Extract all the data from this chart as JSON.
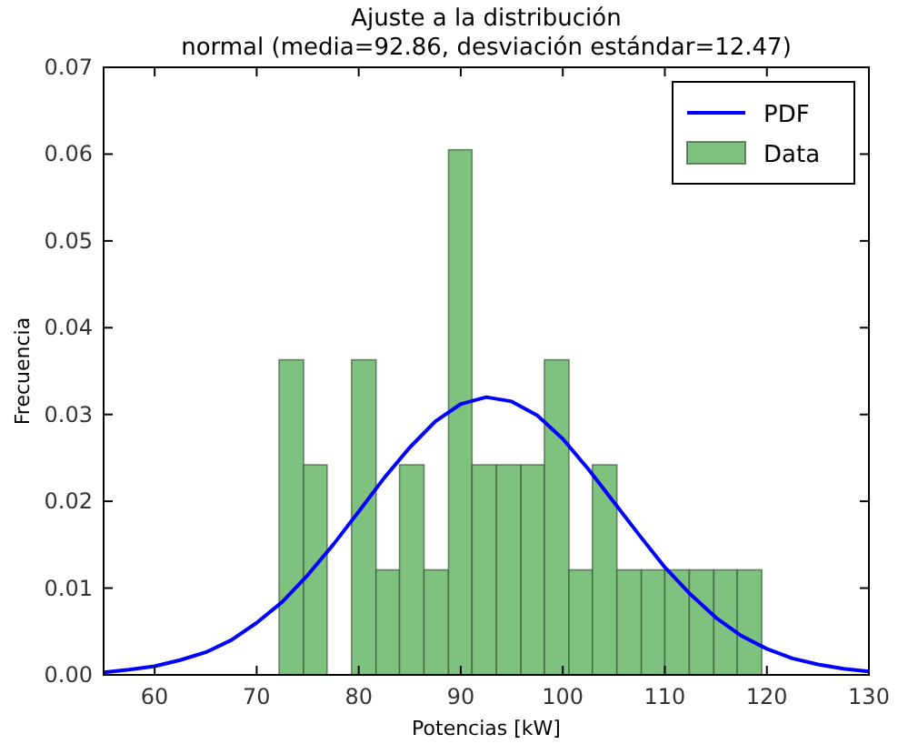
{
  "chart_data": {
    "type": "histogram",
    "title": "Ajuste a la distribución",
    "subtitle": "normal (media=92.86, desviación estándar=12.47)",
    "xlabel": "Potencias [kW]",
    "ylabel": "Frecuencia",
    "bins": [
      72.2,
      74.6,
      76.9,
      79.3,
      81.7,
      84.0,
      86.4,
      88.8,
      91.1,
      93.5,
      95.9,
      98.2,
      100.6,
      102.9,
      105.3,
      107.7,
      110.0,
      112.4,
      114.8,
      117.1,
      119.5
    ],
    "series": [
      {
        "name": "PDF",
        "type": "line",
        "color": "#0000ff",
        "x": [
          55,
          57.5,
          60,
          62.5,
          65,
          67.5,
          70,
          72.5,
          75,
          77.5,
          80,
          82.5,
          85,
          87.5,
          90,
          92.5,
          95,
          97.5,
          100,
          102.5,
          105,
          107.5,
          110,
          112.5,
          115,
          117.5,
          120,
          122.5,
          125,
          127.5,
          130
        ],
        "values": [
          0.0003,
          0.0006,
          0.001,
          0.0017,
          0.0026,
          0.004,
          0.006,
          0.0084,
          0.0115,
          0.015,
          0.0188,
          0.0227,
          0.0262,
          0.0292,
          0.0312,
          0.032,
          0.0315,
          0.0299,
          0.0272,
          0.0237,
          0.0199,
          0.0161,
          0.0124,
          0.0093,
          0.0066,
          0.0045,
          0.003,
          0.0019,
          0.0012,
          0.0007,
          0.0004
        ]
      },
      {
        "name": "Data",
        "color": "#7fc17f",
        "values": [
          0.0363,
          0.0242,
          0,
          0.0363,
          0.0121,
          0.0242,
          0.0121,
          0.0605,
          0.0242,
          0.0242,
          0.0242,
          0.0363,
          0.0121,
          0.0242,
          0.0121,
          0.0121,
          0.0121,
          0.0121,
          0.0121,
          0.0121
        ]
      }
    ],
    "xlim": [
      55,
      130
    ],
    "xticks": [
      60,
      70,
      80,
      90,
      100,
      110,
      120,
      130
    ],
    "ylim": [
      0,
      0.07
    ],
    "yticks": [
      {
        "value": 0,
        "label": "0.00"
      },
      {
        "value": 0.01,
        "label": "0.01"
      },
      {
        "value": 0.02,
        "label": "0.02"
      },
      {
        "value": 0.03,
        "label": "0.03"
      },
      {
        "value": 0.04,
        "label": "0.04"
      },
      {
        "value": 0.05,
        "label": "0.05"
      },
      {
        "value": 0.06,
        "label": "0.06"
      },
      {
        "value": 0.07,
        "label": "0.07"
      }
    ],
    "grid": false,
    "legend": "top right"
  }
}
